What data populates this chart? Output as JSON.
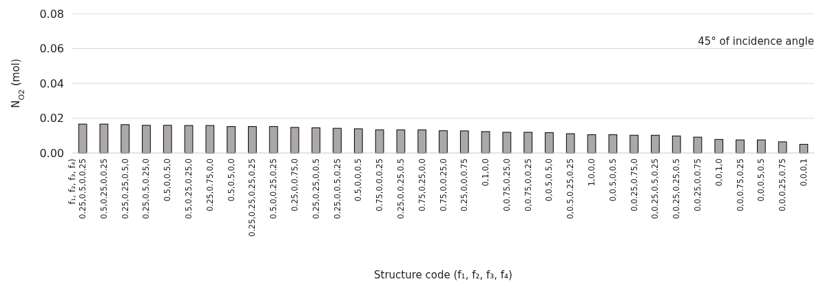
{
  "chart_data": {
    "type": "bar",
    "xlabel": "Structure code (f₁, f₂, f₃, f₄)",
    "ylabel": "N$_{O2}$ (mol)",
    "categories": [
      "0.25,0.5,0,0.25",
      "0.5,0.25,0,0.25",
      "0.25,0.25,0.5,0",
      "0.25,0.5,0.25,0",
      "0.5,0,0.5,0",
      "0.5,0.25,0.25,0",
      "0.25,0.75,0,0",
      "0.5,0.5,0,0",
      "0.25,0.25,0.25,0.25",
      "0.5,0,0.25,0.25",
      "0.25,0,0.75,0",
      "0.25,0.25,0,0.5",
      "0.25,0,0.5,0.25",
      "0.5,0,0,0.5",
      "0.75,0,0,0.25",
      "0.25,0,0.25,0.5",
      "0.75,0.25,0,0",
      "0.75,0,0.25,0",
      "0.25,0,0,0.75",
      "0,1,0,0",
      "0,0.75,0.25,0",
      "0,0.75,0,0.25",
      "0,0.5,0.5,0",
      "0,0.5,0.25,0.25",
      "1,0,0,0",
      "0,0.5,0,0.5",
      "0,0.25,0.75,0",
      "0,0.25,0.5,0.25",
      "0,0.25,0.25,0.5",
      "0,0.25,0,0.75",
      "0,0,1,0",
      "0,0,0.75,0.25",
      "0,0,0.5,0.5",
      "0,0,0.25,0.75",
      "0,0,0,1"
    ],
    "values": [
      0.0166,
      0.0166,
      0.0163,
      0.0159,
      0.0159,
      0.0158,
      0.0158,
      0.0152,
      0.0152,
      0.0152,
      0.0147,
      0.0145,
      0.0142,
      0.0139,
      0.0133,
      0.0133,
      0.0133,
      0.0128,
      0.0127,
      0.0123,
      0.0119,
      0.0119,
      0.0117,
      0.0111,
      0.0105,
      0.0105,
      0.0102,
      0.0102,
      0.0098,
      0.0091,
      0.0078,
      0.0075,
      0.0075,
      0.0064,
      0.005
    ],
    "color": "#aca8a8",
    "ylim": [
      0,
      0.08
    ],
    "yticks": [
      {
        "value": 0,
        "label": "0.00"
      },
      {
        "value": 0.02,
        "label": "0.02"
      },
      {
        "value": 0.04,
        "label": "0.04"
      },
      {
        "value": 0.06,
        "label": "0.06"
      },
      {
        "value": 0.08,
        "label": "0.08"
      }
    ],
    "grid": "y",
    "annotations": [
      "45° of incidence angle",
      "f₁, f₂, f₃, f₄)"
    ]
  }
}
